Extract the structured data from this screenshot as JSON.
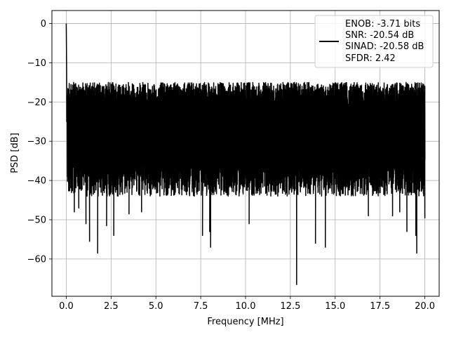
{
  "chart_data": {
    "type": "line",
    "title": "",
    "xlabel": "Frequency [MHz]",
    "ylabel": "PSD [dB]",
    "xlim": [
      -0.8,
      20.8
    ],
    "ylim": [
      -69.5,
      3.3
    ],
    "xticks": [
      0.0,
      2.5,
      5.0,
      7.5,
      10.0,
      12.5,
      15.0,
      17.5,
      20.0
    ],
    "xtick_labels": [
      "0.0",
      "2.5",
      "5.0",
      "7.5",
      "10.0",
      "12.5",
      "15.0",
      "17.5",
      "20.0"
    ],
    "yticks": [
      0,
      -10,
      -20,
      -30,
      -40,
      -50,
      -60
    ],
    "ytick_labels": [
      "0",
      "−10",
      "−20",
      "−30",
      "−40",
      "−50",
      "−60"
    ],
    "grid": true,
    "legend_position": "top-right",
    "line_color": "#000000",
    "series": [
      {
        "name": "ENOB: -3.71 bits\nSNR: -20.54 dB\nSINAD: -20.58 dB\nSFDR: 2.42",
        "legend_lines": [
          "ENOB: -3.71 bits",
          "SNR: -20.54 dB",
          "SINAD: -20.58 dB",
          "SFDR: 2.42"
        ],
        "noise_floor_db": -26,
        "noise_band_db": [
          -42,
          -15
        ],
        "peak": {
          "x": 0.0,
          "y": 0.0
        },
        "minima": [
          {
            "x": 0.45,
            "y": -48
          },
          {
            "x": 0.7,
            "y": -47
          },
          {
            "x": 1.1,
            "y": -51
          },
          {
            "x": 1.3,
            "y": -55.5
          },
          {
            "x": 1.75,
            "y": -58.5
          },
          {
            "x": 2.25,
            "y": -51.5
          },
          {
            "x": 2.65,
            "y": -54
          },
          {
            "x": 3.5,
            "y": -48.5
          },
          {
            "x": 4.2,
            "y": -48
          },
          {
            "x": 7.6,
            "y": -54
          },
          {
            "x": 8.0,
            "y": -53
          },
          {
            "x": 8.05,
            "y": -57
          },
          {
            "x": 10.2,
            "y": -51
          },
          {
            "x": 12.85,
            "y": -66.5
          },
          {
            "x": 13.9,
            "y": -56
          },
          {
            "x": 14.45,
            "y": -57
          },
          {
            "x": 16.85,
            "y": -49
          },
          {
            "x": 18.2,
            "y": -49
          },
          {
            "x": 18.6,
            "y": -48
          },
          {
            "x": 19.0,
            "y": -53
          },
          {
            "x": 19.5,
            "y": -54
          },
          {
            "x": 19.55,
            "y": -58.5
          },
          {
            "x": 20.0,
            "y": -49.5
          }
        ]
      }
    ]
  }
}
